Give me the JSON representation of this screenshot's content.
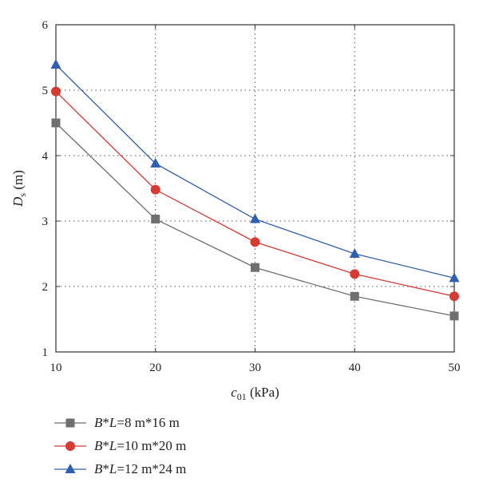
{
  "chart_data": {
    "type": "line",
    "x": [
      10,
      20,
      30,
      40,
      50
    ],
    "xlim": [
      10,
      50
    ],
    "ylim": [
      1,
      6
    ],
    "xticks": [
      "10",
      "20",
      "30",
      "40",
      "50"
    ],
    "yticks": [
      "1",
      "2",
      "3",
      "4",
      "5",
      "6"
    ],
    "xlabel": {
      "var": "c",
      "sub": "01",
      "unit": " (kPa)"
    },
    "ylabel": {
      "var": "D",
      "sub": "s",
      "unit": " (m)"
    },
    "grid": true,
    "legend_position": "bottom-left",
    "series": [
      {
        "name": "B*L=8 m*16 m",
        "name_parts": [
          "B",
          "*",
          "L",
          "=8 m*16 m"
        ],
        "marker": "square",
        "color": "#6f6f6f",
        "values": [
          4.5,
          3.03,
          2.29,
          1.85,
          1.55
        ]
      },
      {
        "name": "B*L=10 m*20 m",
        "name_parts": [
          "B",
          "*",
          "L",
          "=10 m*20 m"
        ],
        "marker": "circle",
        "color": "#d63a33",
        "values": [
          4.98,
          3.48,
          2.68,
          2.19,
          1.85
        ]
      },
      {
        "name": "B*L=12 m*24 m",
        "name_parts": [
          "B",
          "*",
          "L",
          "=12 m*24 m"
        ],
        "marker": "triangle",
        "color": "#2f5fb0",
        "values": [
          5.39,
          3.88,
          3.03,
          2.5,
          2.13
        ]
      }
    ]
  }
}
